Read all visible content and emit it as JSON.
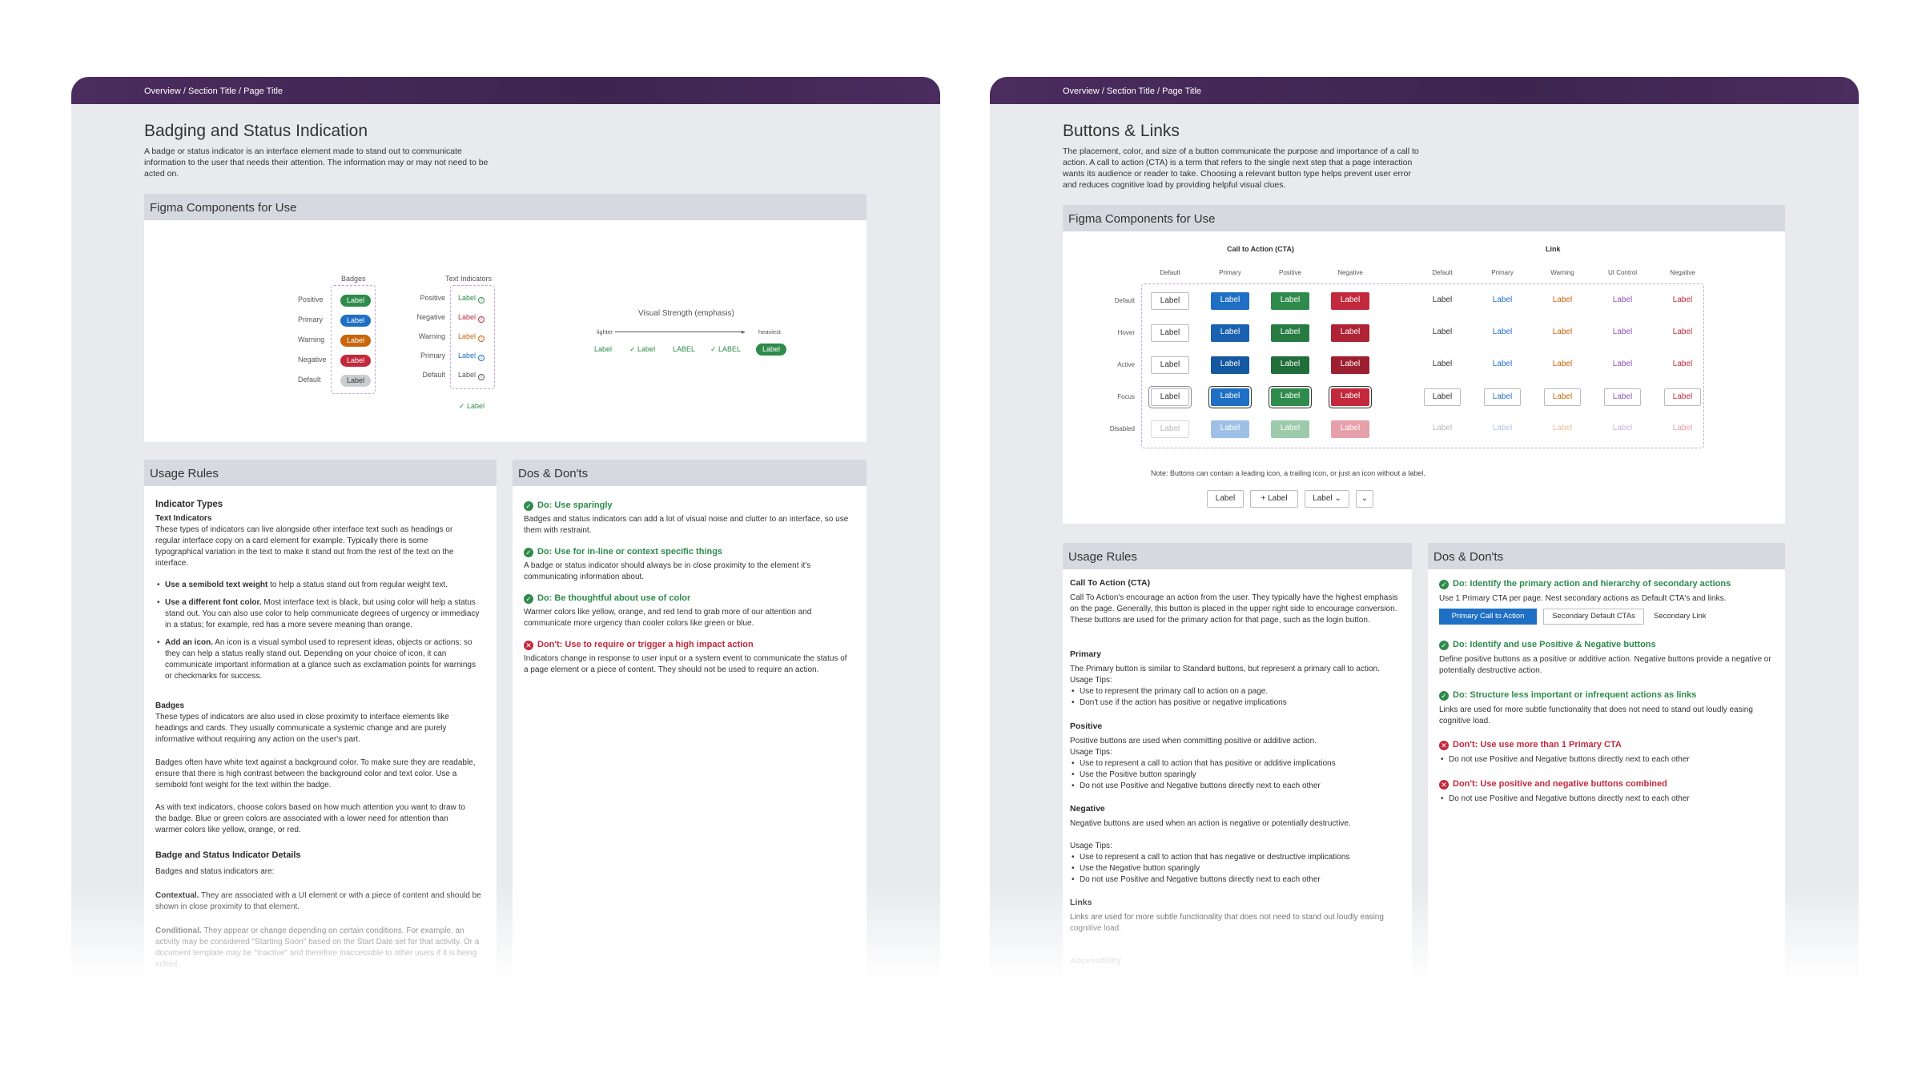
{
  "left": {
    "breadcrumb": "Overview / Section Title / Page Title",
    "title": "Badging and Status Indication",
    "intro": "A badge or status indicator is an interface element made to stand out to communicate information to the user that needs their attention. The information may or may not need to be acted on.",
    "figma": {
      "heading": "Figma Components for Use",
      "badges_title": "Badges",
      "badge_rows": [
        {
          "name": "Positive",
          "label": "Label",
          "color": "#2e8b4b"
        },
        {
          "name": "Primary",
          "label": "Label",
          "color": "#1f6fc5"
        },
        {
          "name": "Warning",
          "label": "Label",
          "color": "#c9650b"
        },
        {
          "name": "Negative",
          "label": "Label",
          "color": "#c2293c"
        },
        {
          "name": "Default",
          "label": "Label",
          "color": "#c9ccd1"
        }
      ],
      "text_indicators_title": "Text Indicators",
      "text_rows": [
        {
          "name": "Positive",
          "label": "Label",
          "color": "#2e8b4b"
        },
        {
          "name": "Negative",
          "label": "Label",
          "color": "#c2293c"
        },
        {
          "name": "Warning",
          "label": "Label",
          "color": "#c9650b"
        },
        {
          "name": "Primary",
          "label": "Label",
          "color": "#1f6fc5"
        },
        {
          "name": "Default",
          "label": "Label",
          "color": "#555555"
        }
      ],
      "text_extra": "✓ Label",
      "strength_title": "Visual Strength (emphasis)",
      "strength_lighter": "lighter",
      "strength_heaviest": "heaviest",
      "strength_items": [
        "Label",
        "✓ Label",
        "LABEL",
        "✓ LABEL",
        "Label"
      ]
    },
    "usage": {
      "heading": "Usage Rules",
      "indicator_types": "Indicator Types",
      "text_indicators": "Text Indicators",
      "text_indicators_body": "These types of indicators can live alongside other interface text such as headings or regular interface copy on a card element for example. Typically there is some typographical variation in the text to make it stand out from the rest of the text on the interface.",
      "bullets": [
        {
          "bold": "Use a semibold text weight",
          "rest": " to help a status stand out from regular weight text."
        },
        {
          "bold": "Use a different font color.",
          "rest": " Most interface text is black, but using color will help a status stand out. You can also use color to help communicate degrees of urgency or immediacy in a status; for example, red has a more severe meaning than orange."
        },
        {
          "bold": "Add an icon.",
          "rest": " An icon is a visual symbol used to represent ideas, objects or actions; so they can help a status really stand out. Depending on your choice of icon, it can communicate important information at a glance such as exclamation points for warnings or checkmarks for success."
        }
      ],
      "badges": "Badges",
      "badges_body1": "These types of indicators are also used in close proximity to interface elements like headings and cards. They usually communicate a systemic change and are purely informative without requiring any action on the user's part.",
      "badges_body2": "Badges often have white text against a background color. To make sure they are readable, ensure that there is high contrast between the background color and text color. Use a semibold font weight for the text within the badge.",
      "badges_body3": "As with text indicators, choose colors based on how much attention you want to draw to the badge. Blue or green colors are associated with a lower need for attention than warmer colors like yellow, orange, or red.",
      "details": "Badge and Status Indicator Details",
      "details_intro": "Badges and status indicators are:",
      "contextual_bold": "Contextual.",
      "contextual_rest": " They are associated with a UI element or with a piece of content and should be shown in close proximity to that element.",
      "conditional_bold": "Conditional.",
      "conditional_rest": " They appear or change depending on certain conditions. For example, an activity may be considered \"Starting Soon\" based on the Start Date set for that activity. Or a document template may be \"Inactive\" and therefore inaccessible to other users if it is being edited."
    },
    "dos": {
      "heading": "Dos & Don'ts",
      "items": [
        {
          "type": "do",
          "title": "Do: Use sparingly",
          "body": "Badges and status indicators can add a lot of visual noise and clutter to an interface, so use them with restraint."
        },
        {
          "type": "do",
          "title": "Do: Use for in-line or context specific things",
          "body": "A badge or status indicator should always be in close proximity to the element it's communicating information about."
        },
        {
          "type": "do",
          "title": "Do: Be thoughtful about use of color",
          "body": "Warmer colors like yellow, orange, and red tend to grab more of our attention and communicate more urgency than cooler colors like green or blue."
        },
        {
          "type": "dont",
          "title": "Don't: Use to require or trigger a high impact action",
          "body": "Indicators change in response to user input or a system event to communicate the status of a page element or a piece of content. They should not be used to require an action."
        }
      ]
    }
  },
  "right": {
    "breadcrumb": "Overview / Section Title / Page Title",
    "title": "Buttons & Links",
    "intro": "The placement, color, and size of a button communicate the purpose and importance of a call to action. A call to action (CTA) is a term that refers to the single next step that a page interaction wants its audience or reader to take. Choosing a relevant button type helps prevent user error and reduces cognitive load by providing helpful visual clues.",
    "figma": {
      "heading": "Figma Components for Use",
      "cta_title": "Call to Action (CTA)",
      "link_title": "Link",
      "cta_cols": [
        "Default",
        "Primary",
        "Positive",
        "Negative"
      ],
      "link_cols": [
        "Default",
        "Primary",
        "Warning",
        "UI Control",
        "Negative"
      ],
      "rows": [
        "Default",
        "Hover",
        "Active",
        "Focus",
        "Disabled"
      ],
      "btn_label": "Label",
      "note": "Note: Buttons can contain a leading icon, a trailing icon, or just an icon without a label.",
      "variant_plain": "Label",
      "variant_leading": "+ Label",
      "variant_trailing": "Label ⌄",
      "variant_icon": "⌄"
    },
    "usage": {
      "heading": "Usage Rules",
      "cta": "Call To Action (CTA)",
      "cta_body": "Call To Action's encourage an action from the user. They typically have the highest emphasis on the page. Generally, this button is placed in the upper right side to encourage conversion. These buttons are used for the primary action for that page, such as the login button.",
      "primary": "Primary",
      "primary_body": "The Primary button is similar to Standard buttons, but represent a primary call to action.",
      "primary_tips_label": "Usage Tips:",
      "primary_tips": [
        "Use to represent the primary call to action on a page.",
        "Don't use if the action has positive or negative implications"
      ],
      "positive": "Positive",
      "positive_body": "Positive buttons are used when committing positive or additive action.",
      "positive_tips_label": "Usage Tips:",
      "positive_tips": [
        "Use to represent a call to action that has positive or additive implications",
        "Use the Positive button sparingly",
        "Do not use Positive and Negative buttons directly next to each other"
      ],
      "negative": "Negative",
      "negative_body": "Negative buttons are used when an action is negative or potentially destructive.",
      "negative_tips_label": "Usage Tips:",
      "negative_tips": [
        "Use to represent a call to action that has negative or destructive implications",
        "Use the Negative button sparingly",
        "Do not use Positive and Negative buttons directly next to each other"
      ],
      "links": "Links",
      "links_body": "Links are used for more subtle functionality that does not need to stand out loudly easing cognitive load.",
      "accessibility": "Accessibility"
    },
    "dos": {
      "heading": "Dos & Don'ts",
      "d1": "Do: Identify the primary action and hierarchy of secondary actions",
      "d1_body": "Use 1 Primary CTA per page. Nest secondary actions as Default CTA's and links.",
      "d1_primary": "Primary Call to Action",
      "d1_secondary": "Secondary Default CTAs",
      "d1_link": "Secondary Link",
      "d2": "Do: Identify and use Positive & Negative buttons",
      "d2_body": "Define positive buttons as a positive or additive action.  Negative buttons provide a negative or potentially destructive action.",
      "d3": "Do: Structure less important or infrequent actions as links",
      "d3_body": "Links are used for more subtle functionality that does not need to stand out loudly easing cognitive load.",
      "d4": "Don't: Use use more than 1 Primary CTA",
      "d4_body": "Do not use Positive and Negative buttons directly next to each other",
      "d5": "Don't: Use positive and negative buttons combined",
      "d5_body": "Do not use Positive and Negative buttons directly next to each other"
    }
  },
  "colors": {
    "header": "#3d2550",
    "positive": "#2e8b4b",
    "primary": "#1f6fc5",
    "warning": "#c9650b",
    "negative": "#c2293c"
  }
}
